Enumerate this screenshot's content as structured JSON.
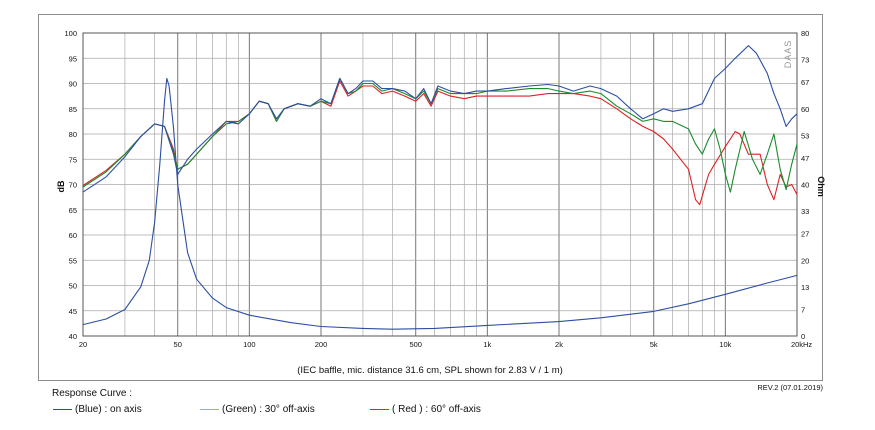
{
  "chart_data": {
    "type": "line",
    "x_axis": {
      "label": "",
      "scale": "log",
      "unit_label": "Hz",
      "range": [
        20,
        20000
      ],
      "tick_values": [
        20,
        50,
        100,
        200,
        500,
        1000,
        2000,
        5000,
        10000,
        20000
      ],
      "tick_labels": [
        "20",
        "50",
        "100",
        "200",
        "500",
        "1k",
        "2k",
        "5k",
        "10k",
        "20k"
      ]
    },
    "y_axis_left": {
      "label": "dB",
      "range": [
        40,
        100
      ],
      "tick_values": [
        40,
        45,
        50,
        55,
        60,
        65,
        70,
        75,
        80,
        85,
        90,
        95,
        100
      ],
      "tick_labels": [
        "40",
        "45",
        "50",
        "55",
        "60",
        "65",
        "70",
        "75",
        "80",
        "85",
        "90",
        "95",
        "100"
      ]
    },
    "y_axis_right": {
      "label": "Ohm",
      "range": [
        0,
        80
      ],
      "tick_values": [
        0,
        7,
        13,
        20,
        27,
        33,
        40,
        47,
        53,
        60,
        67,
        73,
        80
      ],
      "tick_labels": [
        "0",
        "7",
        "13",
        "20",
        "27",
        "33",
        "40",
        "47",
        "53",
        "60",
        "67",
        "73",
        "80"
      ]
    },
    "grid": true,
    "caption": "(IEC baffle, mic. distance 31.6 cm, SPL shown for 2.83 V / 1 m)",
    "watermark": "DAAS",
    "series": [
      {
        "name": "(Blue)  : on axis",
        "color": "#2c4fa3",
        "axis": "left",
        "points": [
          [
            20,
            68.5
          ],
          [
            25,
            71.5
          ],
          [
            30,
            75.5
          ],
          [
            35,
            79.5
          ],
          [
            40,
            82
          ],
          [
            44,
            81.5
          ],
          [
            48,
            76
          ],
          [
            50,
            72
          ],
          [
            55,
            75
          ],
          [
            60,
            77
          ],
          [
            70,
            80
          ],
          [
            80,
            82.5
          ],
          [
            90,
            82
          ],
          [
            100,
            84
          ],
          [
            110,
            86.5
          ],
          [
            120,
            86
          ],
          [
            130,
            83
          ],
          [
            140,
            85
          ],
          [
            160,
            86
          ],
          [
            180,
            85.5
          ],
          [
            200,
            87
          ],
          [
            220,
            86
          ],
          [
            240,
            91
          ],
          [
            260,
            88
          ],
          [
            280,
            89
          ],
          [
            300,
            90.5
          ],
          [
            330,
            90.5
          ],
          [
            360,
            89
          ],
          [
            400,
            89
          ],
          [
            450,
            88.5
          ],
          [
            500,
            87
          ],
          [
            540,
            89
          ],
          [
            580,
            86
          ],
          [
            620,
            89.5
          ],
          [
            700,
            88.5
          ],
          [
            800,
            88
          ],
          [
            900,
            88.5
          ],
          [
            1000,
            88.5
          ],
          [
            1200,
            89
          ],
          [
            1500,
            89.5
          ],
          [
            1800,
            89.8
          ],
          [
            2000,
            89.5
          ],
          [
            2300,
            88.5
          ],
          [
            2700,
            89.5
          ],
          [
            3000,
            89
          ],
          [
            3500,
            87.5
          ],
          [
            4000,
            85
          ],
          [
            4500,
            83
          ],
          [
            5000,
            84
          ],
          [
            5500,
            85
          ],
          [
            6000,
            84.5
          ],
          [
            7000,
            85
          ],
          [
            8000,
            86
          ],
          [
            9000,
            91
          ],
          [
            10000,
            93
          ],
          [
            11000,
            95
          ],
          [
            12500,
            97.5
          ],
          [
            13500,
            96
          ],
          [
            15000,
            92
          ],
          [
            16000,
            88
          ],
          [
            17000,
            85
          ],
          [
            18000,
            81.5
          ],
          [
            19000,
            83
          ],
          [
            20000,
            84
          ]
        ]
      },
      {
        "name": "(Green) : 30° off-axis",
        "color": "#1a8c2e",
        "axis": "left",
        "points": [
          [
            20,
            69.5
          ],
          [
            25,
            72.5
          ],
          [
            30,
            76
          ],
          [
            35,
            79.5
          ],
          [
            40,
            82
          ],
          [
            44,
            81.5
          ],
          [
            48,
            76.5
          ],
          [
            50,
            73
          ],
          [
            55,
            74
          ],
          [
            60,
            76
          ],
          [
            70,
            79.5
          ],
          [
            80,
            82
          ],
          [
            90,
            82.5
          ],
          [
            100,
            84
          ],
          [
            110,
            86.5
          ],
          [
            120,
            86
          ],
          [
            130,
            82.5
          ],
          [
            140,
            85
          ],
          [
            160,
            86
          ],
          [
            180,
            85.5
          ],
          [
            200,
            86.5
          ],
          [
            220,
            86
          ],
          [
            240,
            91
          ],
          [
            260,
            88
          ],
          [
            280,
            88.5
          ],
          [
            300,
            90
          ],
          [
            330,
            90
          ],
          [
            360,
            88.5
          ],
          [
            400,
            89
          ],
          [
            450,
            88
          ],
          [
            500,
            87
          ],
          [
            540,
            88.5
          ],
          [
            580,
            86
          ],
          [
            620,
            89
          ],
          [
            700,
            88
          ],
          [
            800,
            88
          ],
          [
            900,
            88
          ],
          [
            1000,
            88.5
          ],
          [
            1200,
            88.5
          ],
          [
            1500,
            89
          ],
          [
            1800,
            89
          ],
          [
            2000,
            88.5
          ],
          [
            2300,
            88
          ],
          [
            2700,
            88.5
          ],
          [
            3000,
            88
          ],
          [
            3500,
            85.5
          ],
          [
            4000,
            84
          ],
          [
            4500,
            82.5
          ],
          [
            5000,
            83
          ],
          [
            5500,
            82.5
          ],
          [
            6000,
            82.5
          ],
          [
            7000,
            81
          ],
          [
            7500,
            78
          ],
          [
            8000,
            76
          ],
          [
            8500,
            79
          ],
          [
            9000,
            81
          ],
          [
            9500,
            77
          ],
          [
            10000,
            72
          ],
          [
            10500,
            68.5
          ],
          [
            11000,
            73
          ],
          [
            12000,
            80.5
          ],
          [
            13000,
            75
          ],
          [
            14000,
            72
          ],
          [
            15000,
            76
          ],
          [
            16000,
            80
          ],
          [
            17000,
            73
          ],
          [
            18000,
            69
          ],
          [
            19000,
            74
          ],
          [
            20000,
            78
          ]
        ]
      },
      {
        "name": "( Red )  : 60° off-axis",
        "color": "#dd2222",
        "axis": "left",
        "points": [
          [
            20,
            69.8
          ],
          [
            25,
            72.8
          ],
          [
            30,
            76
          ],
          [
            35,
            79.5
          ],
          [
            40,
            82
          ],
          [
            44,
            81.5
          ],
          [
            48,
            77
          ],
          [
            50,
            73
          ],
          [
            55,
            74
          ],
          [
            60,
            76
          ],
          [
            70,
            79.5
          ],
          [
            80,
            82.5
          ],
          [
            90,
            82.5
          ],
          [
            100,
            84
          ],
          [
            110,
            86.5
          ],
          [
            120,
            86
          ],
          [
            130,
            82.5
          ],
          [
            140,
            85
          ],
          [
            160,
            86
          ],
          [
            180,
            85.5
          ],
          [
            200,
            86.5
          ],
          [
            220,
            85.5
          ],
          [
            240,
            90.5
          ],
          [
            260,
            87.5
          ],
          [
            280,
            88.5
          ],
          [
            300,
            89.5
          ],
          [
            330,
            89.5
          ],
          [
            360,
            88
          ],
          [
            400,
            88.5
          ],
          [
            450,
            87.5
          ],
          [
            500,
            86.5
          ],
          [
            540,
            88
          ],
          [
            580,
            85.5
          ],
          [
            620,
            88.5
          ],
          [
            700,
            87.5
          ],
          [
            800,
            87
          ],
          [
            900,
            87.5
          ],
          [
            1000,
            87.5
          ],
          [
            1200,
            87.5
          ],
          [
            1500,
            87.5
          ],
          [
            1800,
            88
          ],
          [
            2000,
            88
          ],
          [
            2300,
            88
          ],
          [
            2700,
            87.5
          ],
          [
            3000,
            87
          ],
          [
            3500,
            85
          ],
          [
            4000,
            83
          ],
          [
            4500,
            81.5
          ],
          [
            5000,
            80.5
          ],
          [
            5500,
            79
          ],
          [
            6000,
            77
          ],
          [
            7000,
            73
          ],
          [
            7500,
            67
          ],
          [
            7800,
            66
          ],
          [
            8500,
            72
          ],
          [
            9000,
            74
          ],
          [
            10000,
            77.5
          ],
          [
            11000,
            80.5
          ],
          [
            11500,
            80
          ],
          [
            12500,
            76
          ],
          [
            14000,
            76
          ],
          [
            15000,
            70
          ],
          [
            16000,
            67
          ],
          [
            17000,
            72
          ],
          [
            18000,
            69.5
          ],
          [
            19000,
            70
          ],
          [
            20000,
            68
          ]
        ]
      },
      {
        "name": "impedance",
        "color": "#2c4fa3",
        "axis": "right",
        "points": [
          [
            20,
            3
          ],
          [
            25,
            4.5
          ],
          [
            30,
            7
          ],
          [
            35,
            13
          ],
          [
            38,
            20
          ],
          [
            40,
            30
          ],
          [
            42,
            45
          ],
          [
            44,
            62
          ],
          [
            45,
            68
          ],
          [
            46,
            66
          ],
          [
            48,
            55
          ],
          [
            50,
            40
          ],
          [
            55,
            22
          ],
          [
            60,
            15
          ],
          [
            70,
            10
          ],
          [
            80,
            7.5
          ],
          [
            100,
            5.5
          ],
          [
            150,
            3.5
          ],
          [
            200,
            2.5
          ],
          [
            300,
            2
          ],
          [
            400,
            1.8
          ],
          [
            600,
            2
          ],
          [
            1000,
            2.8
          ],
          [
            2000,
            3.8
          ],
          [
            3000,
            4.8
          ],
          [
            5000,
            6.5
          ],
          [
            7000,
            8.5
          ],
          [
            10000,
            11
          ],
          [
            15000,
            14
          ],
          [
            20000,
            16
          ]
        ]
      }
    ]
  },
  "legend": {
    "title": "Response Curve :",
    "items": [
      {
        "label": "(Blue)  : on axis",
        "color": "#2c4fa3"
      },
      {
        "label": "(Green) : 30° off-axis",
        "color": "#9acd32"
      },
      {
        "label": "( Red )  : 60° off-axis",
        "color": "#ee2222"
      }
    ]
  },
  "revision": "REV.2 (07.01.2019)"
}
